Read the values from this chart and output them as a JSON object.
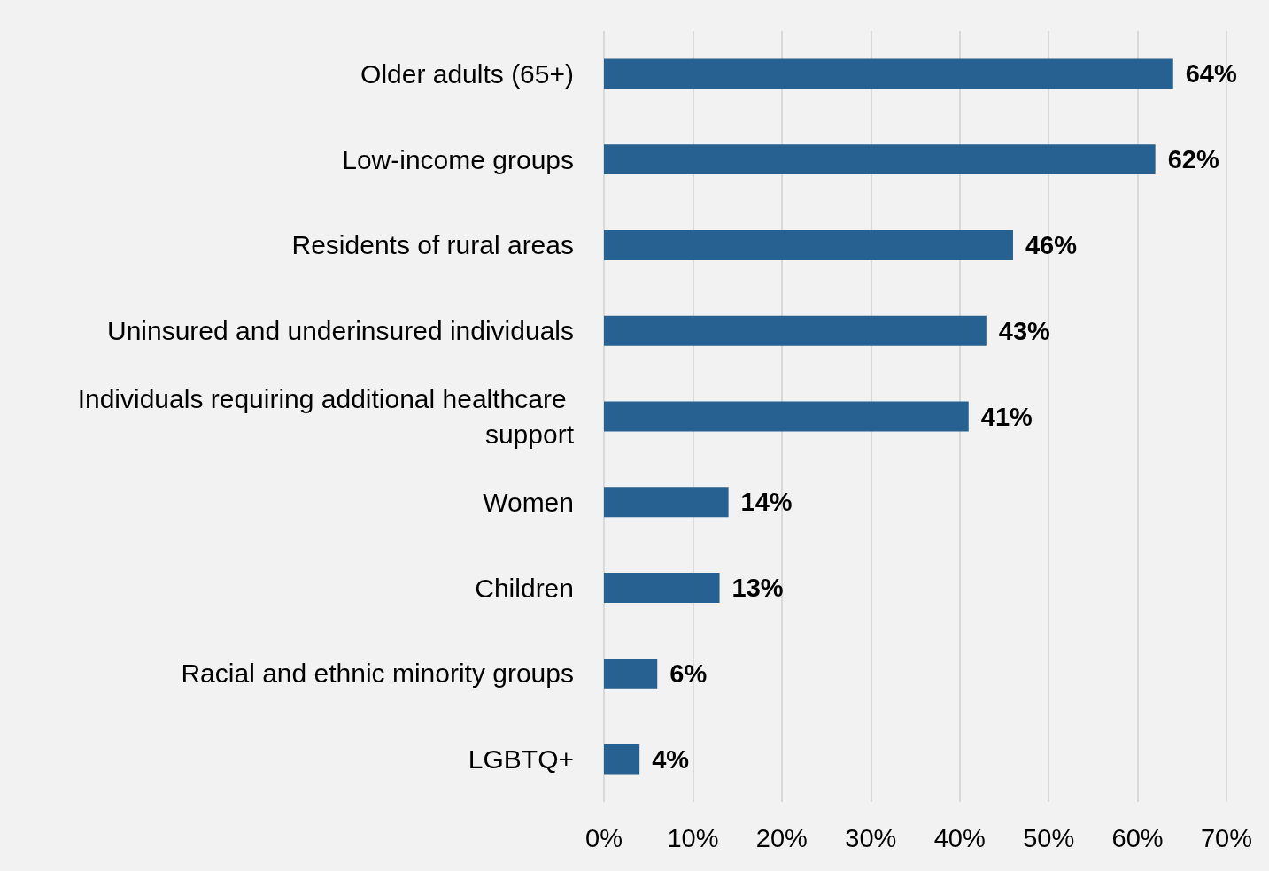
{
  "chart_data": {
    "type": "bar",
    "orientation": "horizontal",
    "categories": [
      "Older adults (65+)",
      "Low-income groups",
      "Residents of rural areas",
      "Uninsured and underinsured individuals",
      "Individuals requiring additional healthcare support",
      "Women",
      "Children",
      "Racial and ethnic minority groups",
      "LGBTQ+"
    ],
    "values": [
      64,
      62,
      46,
      43,
      41,
      14,
      13,
      6,
      4
    ],
    "value_labels": [
      "64%",
      "62%",
      "46%",
      "43%",
      "41%",
      "14%",
      "13%",
      "6%",
      "4%"
    ],
    "color": "#266191",
    "xlim": [
      0,
      70
    ],
    "xticks": [
      {
        "value": 0,
        "label": "0%"
      },
      {
        "value": 10,
        "label": "10%"
      },
      {
        "value": 20,
        "label": "20%"
      },
      {
        "value": 30,
        "label": "30%"
      },
      {
        "value": 40,
        "label": "40%"
      },
      {
        "value": 50,
        "label": "50%"
      },
      {
        "value": 60,
        "label": "60%"
      },
      {
        "value": 70,
        "label": "70%"
      }
    ],
    "grid": "x"
  }
}
